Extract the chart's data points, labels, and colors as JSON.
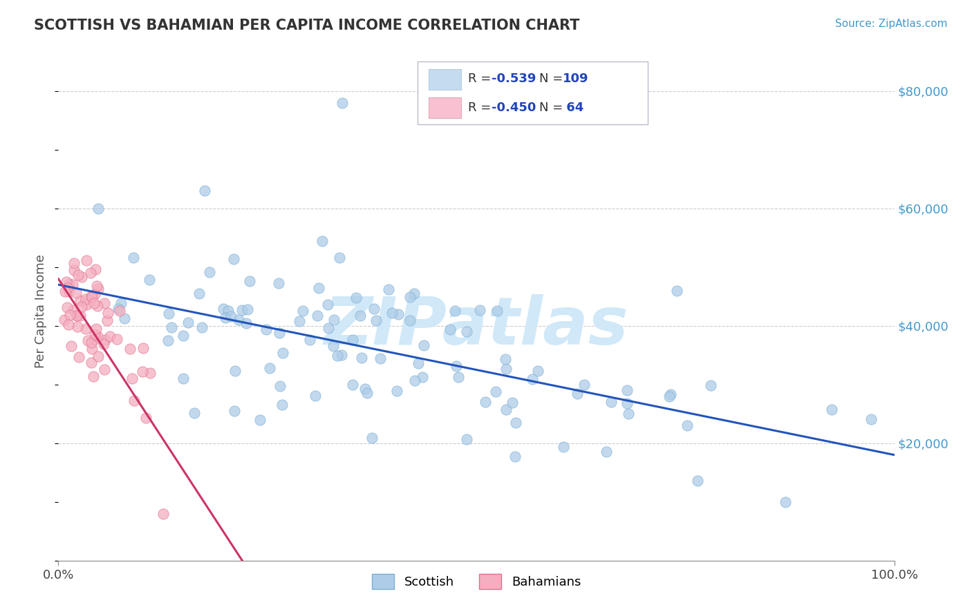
{
  "title": "SCOTTISH VS BAHAMIAN PER CAPITA INCOME CORRELATION CHART",
  "source_text": "Source: ZipAtlas.com",
  "ylabel": "Per Capita Income",
  "watermark": "ZIPatlas",
  "xlim": [
    0,
    1.0
  ],
  "ylim": [
    0,
    85000
  ],
  "xtick_labels": [
    "0.0%",
    "100.0%"
  ],
  "ytick_values": [
    20000,
    40000,
    60000,
    80000
  ],
  "ytick_labels": [
    "$20,000",
    "$40,000",
    "$60,000",
    "$80,000"
  ],
  "scottish_R": "-0.539",
  "scottish_N": "109",
  "bahamian_R": "-0.450",
  "bahamian_N": " 64",
  "scottish_color": "#aecce8",
  "scottish_edge": "#7aafd4",
  "bahamian_color": "#f5aec0",
  "bahamian_edge": "#e0708a",
  "line_scottish": "#2255bb",
  "line_bahamian": "#cc3366",
  "legend_box_scottish": "#c5dcf0",
  "legend_box_bahamian": "#f8c0d0",
  "title_color": "#333333",
  "axis_color": "#888888",
  "source_color": "#4499cc",
  "watermark_color": "#d0e8f8",
  "grid_color": "#cccccc",
  "scottish_line_x0": 0.0,
  "scottish_line_x1": 1.0,
  "scottish_line_y0": 47000,
  "scottish_line_y1": 18000,
  "bahamian_line_x0": 0.0,
  "bahamian_line_x1": 0.22,
  "bahamian_line_y0": 48000,
  "bahamian_line_y1": 0
}
